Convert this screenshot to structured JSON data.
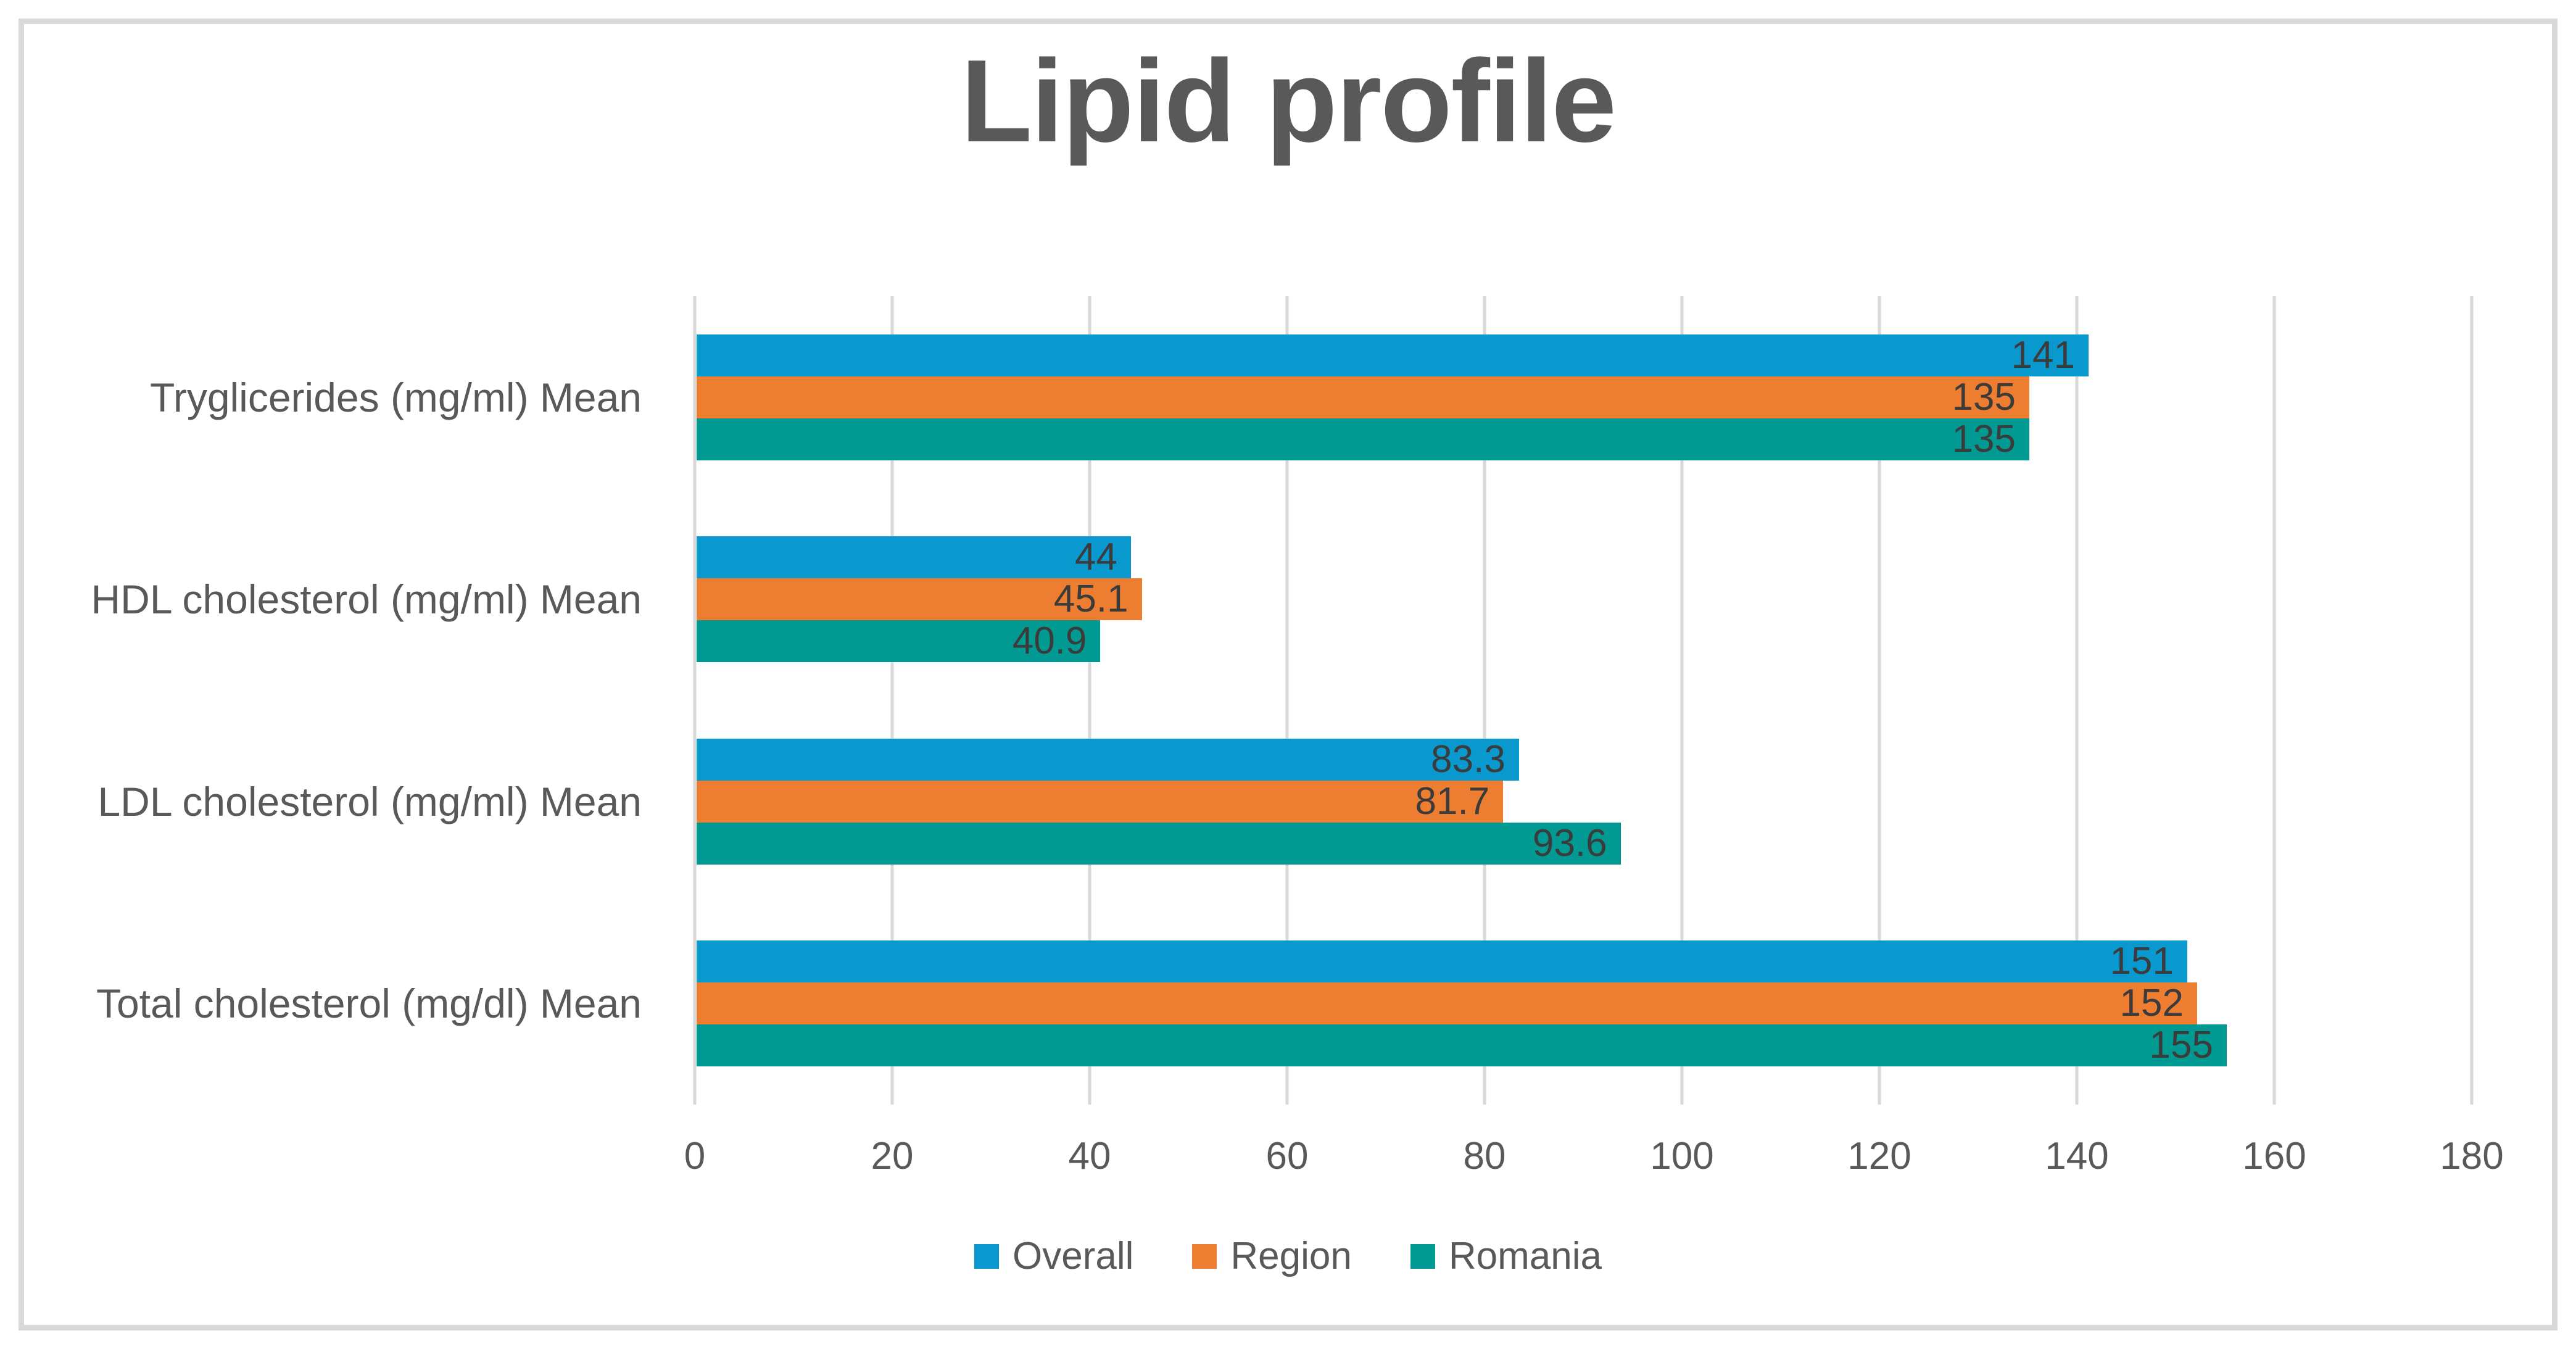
{
  "title": "Lipid profile",
  "colors": {
    "overall_series": "#0999CE",
    "region_series": "#ED7D31",
    "romania_series": "#009A93",
    "gridline": "#D9D9D9",
    "frame_border": "#D9D9D9",
    "axis_text": "#595959",
    "data_label_text": "#3B3B3B",
    "title_text": "#595959",
    "background": "#FFFFFF"
  },
  "chart_data": {
    "type": "bar",
    "orientation": "horizontal",
    "title": "Lipid profile",
    "categories": [
      "Tryglicerides (mg/ml) Mean",
      "HDL cholesterol (mg/ml) Mean",
      "LDL cholesterol (mg/ml) Mean",
      "Total cholesterol (mg/dl) Mean"
    ],
    "series": [
      {
        "name": "Overall",
        "color": "#0999CE",
        "values": [
          141,
          44,
          83.3,
          151
        ]
      },
      {
        "name": "Region",
        "color": "#ED7D31",
        "values": [
          135,
          45.1,
          81.7,
          152
        ]
      },
      {
        "name": "Romania",
        "color": "#009A93",
        "values": [
          135,
          40.9,
          93.6,
          155
        ]
      }
    ],
    "x_axis": {
      "min": 0,
      "max": 180,
      "tick_step": 20,
      "ticks": [
        0,
        20,
        40,
        60,
        80,
        100,
        120,
        140,
        160,
        180
      ]
    },
    "grid": "vertical",
    "data_labels": "inside-end",
    "legend": {
      "position": "bottom",
      "entries": [
        "Overall",
        "Region",
        "Romania"
      ]
    }
  }
}
